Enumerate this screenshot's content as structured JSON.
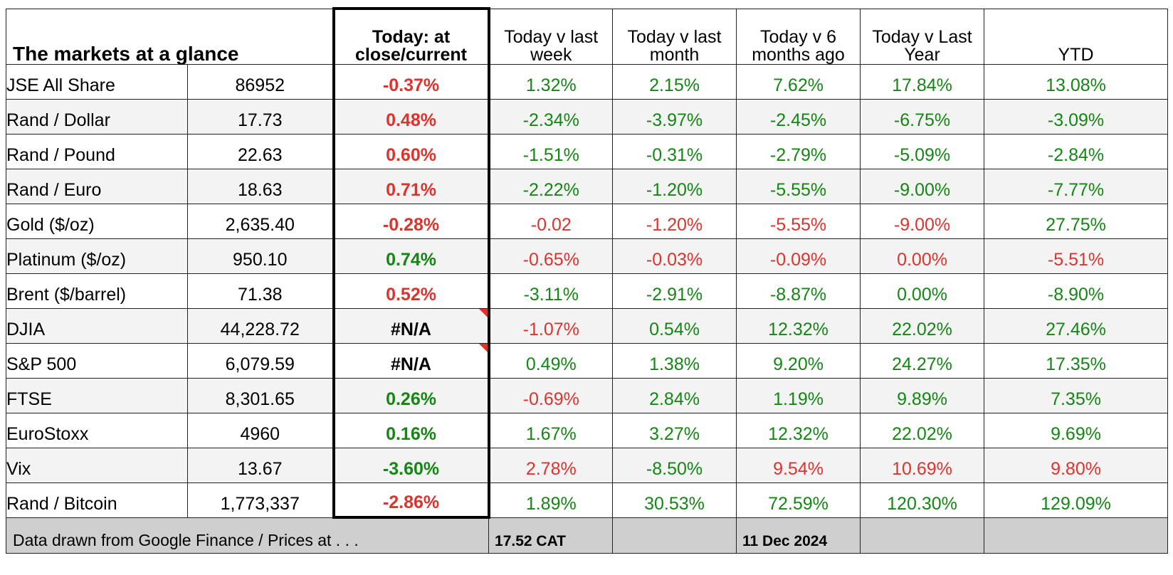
{
  "header": {
    "title": "The markets at a glance",
    "columns": [
      "Today: at close/current",
      "Today v last week",
      "Today v last month",
      "Today v 6 months ago",
      "Today v Last Year",
      "YTD"
    ]
  },
  "rows": [
    {
      "name": "JSE All Share",
      "value": "86952",
      "today": "-0.37%",
      "today_color": "neg",
      "wk": "1.32%",
      "wk_c": "pos",
      "mo": "2.15%",
      "mo_c": "pos",
      "m6": "7.62%",
      "m6_c": "pos",
      "yr": "17.84%",
      "yr_c": "pos",
      "ytd": "13.08%",
      "ytd_c": "pos"
    },
    {
      "name": "Rand / Dollar",
      "value": "17.73",
      "today": "0.48%",
      "today_color": "neg",
      "wk": "-2.34%",
      "wk_c": "pos",
      "mo": "-3.97%",
      "mo_c": "pos",
      "m6": "-2.45%",
      "m6_c": "pos",
      "yr": "-6.75%",
      "yr_c": "pos",
      "ytd": "-3.09%",
      "ytd_c": "pos"
    },
    {
      "name": "Rand / Pound",
      "value": "22.63",
      "today": "0.60%",
      "today_color": "neg",
      "wk": "-1.51%",
      "wk_c": "pos",
      "mo": "-0.31%",
      "mo_c": "pos",
      "m6": "-2.79%",
      "m6_c": "pos",
      "yr": "-5.09%",
      "yr_c": "pos",
      "ytd": "-2.84%",
      "ytd_c": "pos"
    },
    {
      "name": "Rand / Euro",
      "value": "18.63",
      "today": "0.71%",
      "today_color": "neg",
      "wk": "-2.22%",
      "wk_c": "pos",
      "mo": "-1.20%",
      "mo_c": "pos",
      "m6": "-5.55%",
      "m6_c": "pos",
      "yr": "-9.00%",
      "yr_c": "pos",
      "ytd": "-7.77%",
      "ytd_c": "pos"
    },
    {
      "name": "Gold ($/oz)",
      "value": "2,635.40",
      "today": "-0.28%",
      "today_color": "neg",
      "wk": "-0.02",
      "wk_c": "neg",
      "mo": "-1.20%",
      "mo_c": "neg",
      "m6": "-5.55%",
      "m6_c": "neg",
      "yr": "-9.00%",
      "yr_c": "neg",
      "ytd": "27.75%",
      "ytd_c": "pos"
    },
    {
      "name": "Platinum ($/oz)",
      "value": "950.10",
      "today": "0.74%",
      "today_color": "pos",
      "wk": "-0.65%",
      "wk_c": "neg",
      "mo": "-0.03%",
      "mo_c": "neg",
      "m6": "-0.09%",
      "m6_c": "neg",
      "yr": "0.00%",
      "yr_c": "neg",
      "ytd": "-5.51%",
      "ytd_c": "neg"
    },
    {
      "name": "Brent ($/barrel)",
      "value": "71.38",
      "today": "0.52%",
      "today_color": "neg",
      "wk": "-3.11%",
      "wk_c": "pos",
      "mo": "-2.91%",
      "mo_c": "pos",
      "m6": "-8.87%",
      "m6_c": "pos",
      "yr": "0.00%",
      "yr_c": "pos",
      "ytd": "-8.90%",
      "ytd_c": "pos"
    },
    {
      "name": "DJIA",
      "value": "44,228.72",
      "today": "#N/A",
      "today_color": "na",
      "flag": true,
      "wk": "-1.07%",
      "wk_c": "neg",
      "mo": "0.54%",
      "mo_c": "pos",
      "m6": "12.32%",
      "m6_c": "pos",
      "yr": "22.02%",
      "yr_c": "pos",
      "ytd": "27.46%",
      "ytd_c": "pos"
    },
    {
      "name": "S&P 500",
      "value": "6,079.59",
      "today": "#N/A",
      "today_color": "na",
      "flag": true,
      "wk": "0.49%",
      "wk_c": "pos",
      "mo": "1.38%",
      "mo_c": "pos",
      "m6": "9.20%",
      "m6_c": "pos",
      "yr": "24.27%",
      "yr_c": "pos",
      "ytd": "17.35%",
      "ytd_c": "pos"
    },
    {
      "name": "FTSE",
      "value": "8,301.65",
      "today": "0.26%",
      "today_color": "pos",
      "wk": "-0.69%",
      "wk_c": "neg",
      "mo": "2.84%",
      "mo_c": "pos",
      "m6": "1.19%",
      "m6_c": "pos",
      "yr": "9.89%",
      "yr_c": "pos",
      "ytd": "7.35%",
      "ytd_c": "pos"
    },
    {
      "name": "EuroStoxx",
      "value": "4960",
      "today": "0.16%",
      "today_color": "pos",
      "wk": "1.67%",
      "wk_c": "pos",
      "mo": "3.27%",
      "mo_c": "pos",
      "m6": "12.32%",
      "m6_c": "pos",
      "yr": "22.02%",
      "yr_c": "pos",
      "ytd": "9.69%",
      "ytd_c": "pos"
    },
    {
      "name": "Vix",
      "value": "13.67",
      "today": "-3.60%",
      "today_color": "pos",
      "wk": "2.78%",
      "wk_c": "neg",
      "mo": "-8.50%",
      "mo_c": "pos",
      "m6": "9.54%",
      "m6_c": "neg",
      "yr": "10.69%",
      "yr_c": "neg",
      "ytd": "9.80%",
      "ytd_c": "neg"
    },
    {
      "name": "Rand / Bitcoin",
      "value": "1,773,337",
      "today": "-2.86%",
      "today_color": "neg",
      "wk": "1.89%",
      "wk_c": "pos",
      "mo": "30.53%",
      "mo_c": "pos",
      "m6": "72.59%",
      "m6_c": "pos",
      "yr": "120.30%",
      "yr_c": "pos",
      "ytd": "129.09%",
      "ytd_c": "pos"
    }
  ],
  "footer": {
    "note": "Data drawn from Google Finance / Prices at . . .",
    "time": "17.52 CAT",
    "date": "11 Dec 2024"
  },
  "colors": {
    "pos": "#148614",
    "neg": "#e0322d",
    "footer_bg": "#cfcfcf",
    "alt_row_bg": "#f3f3f3"
  }
}
